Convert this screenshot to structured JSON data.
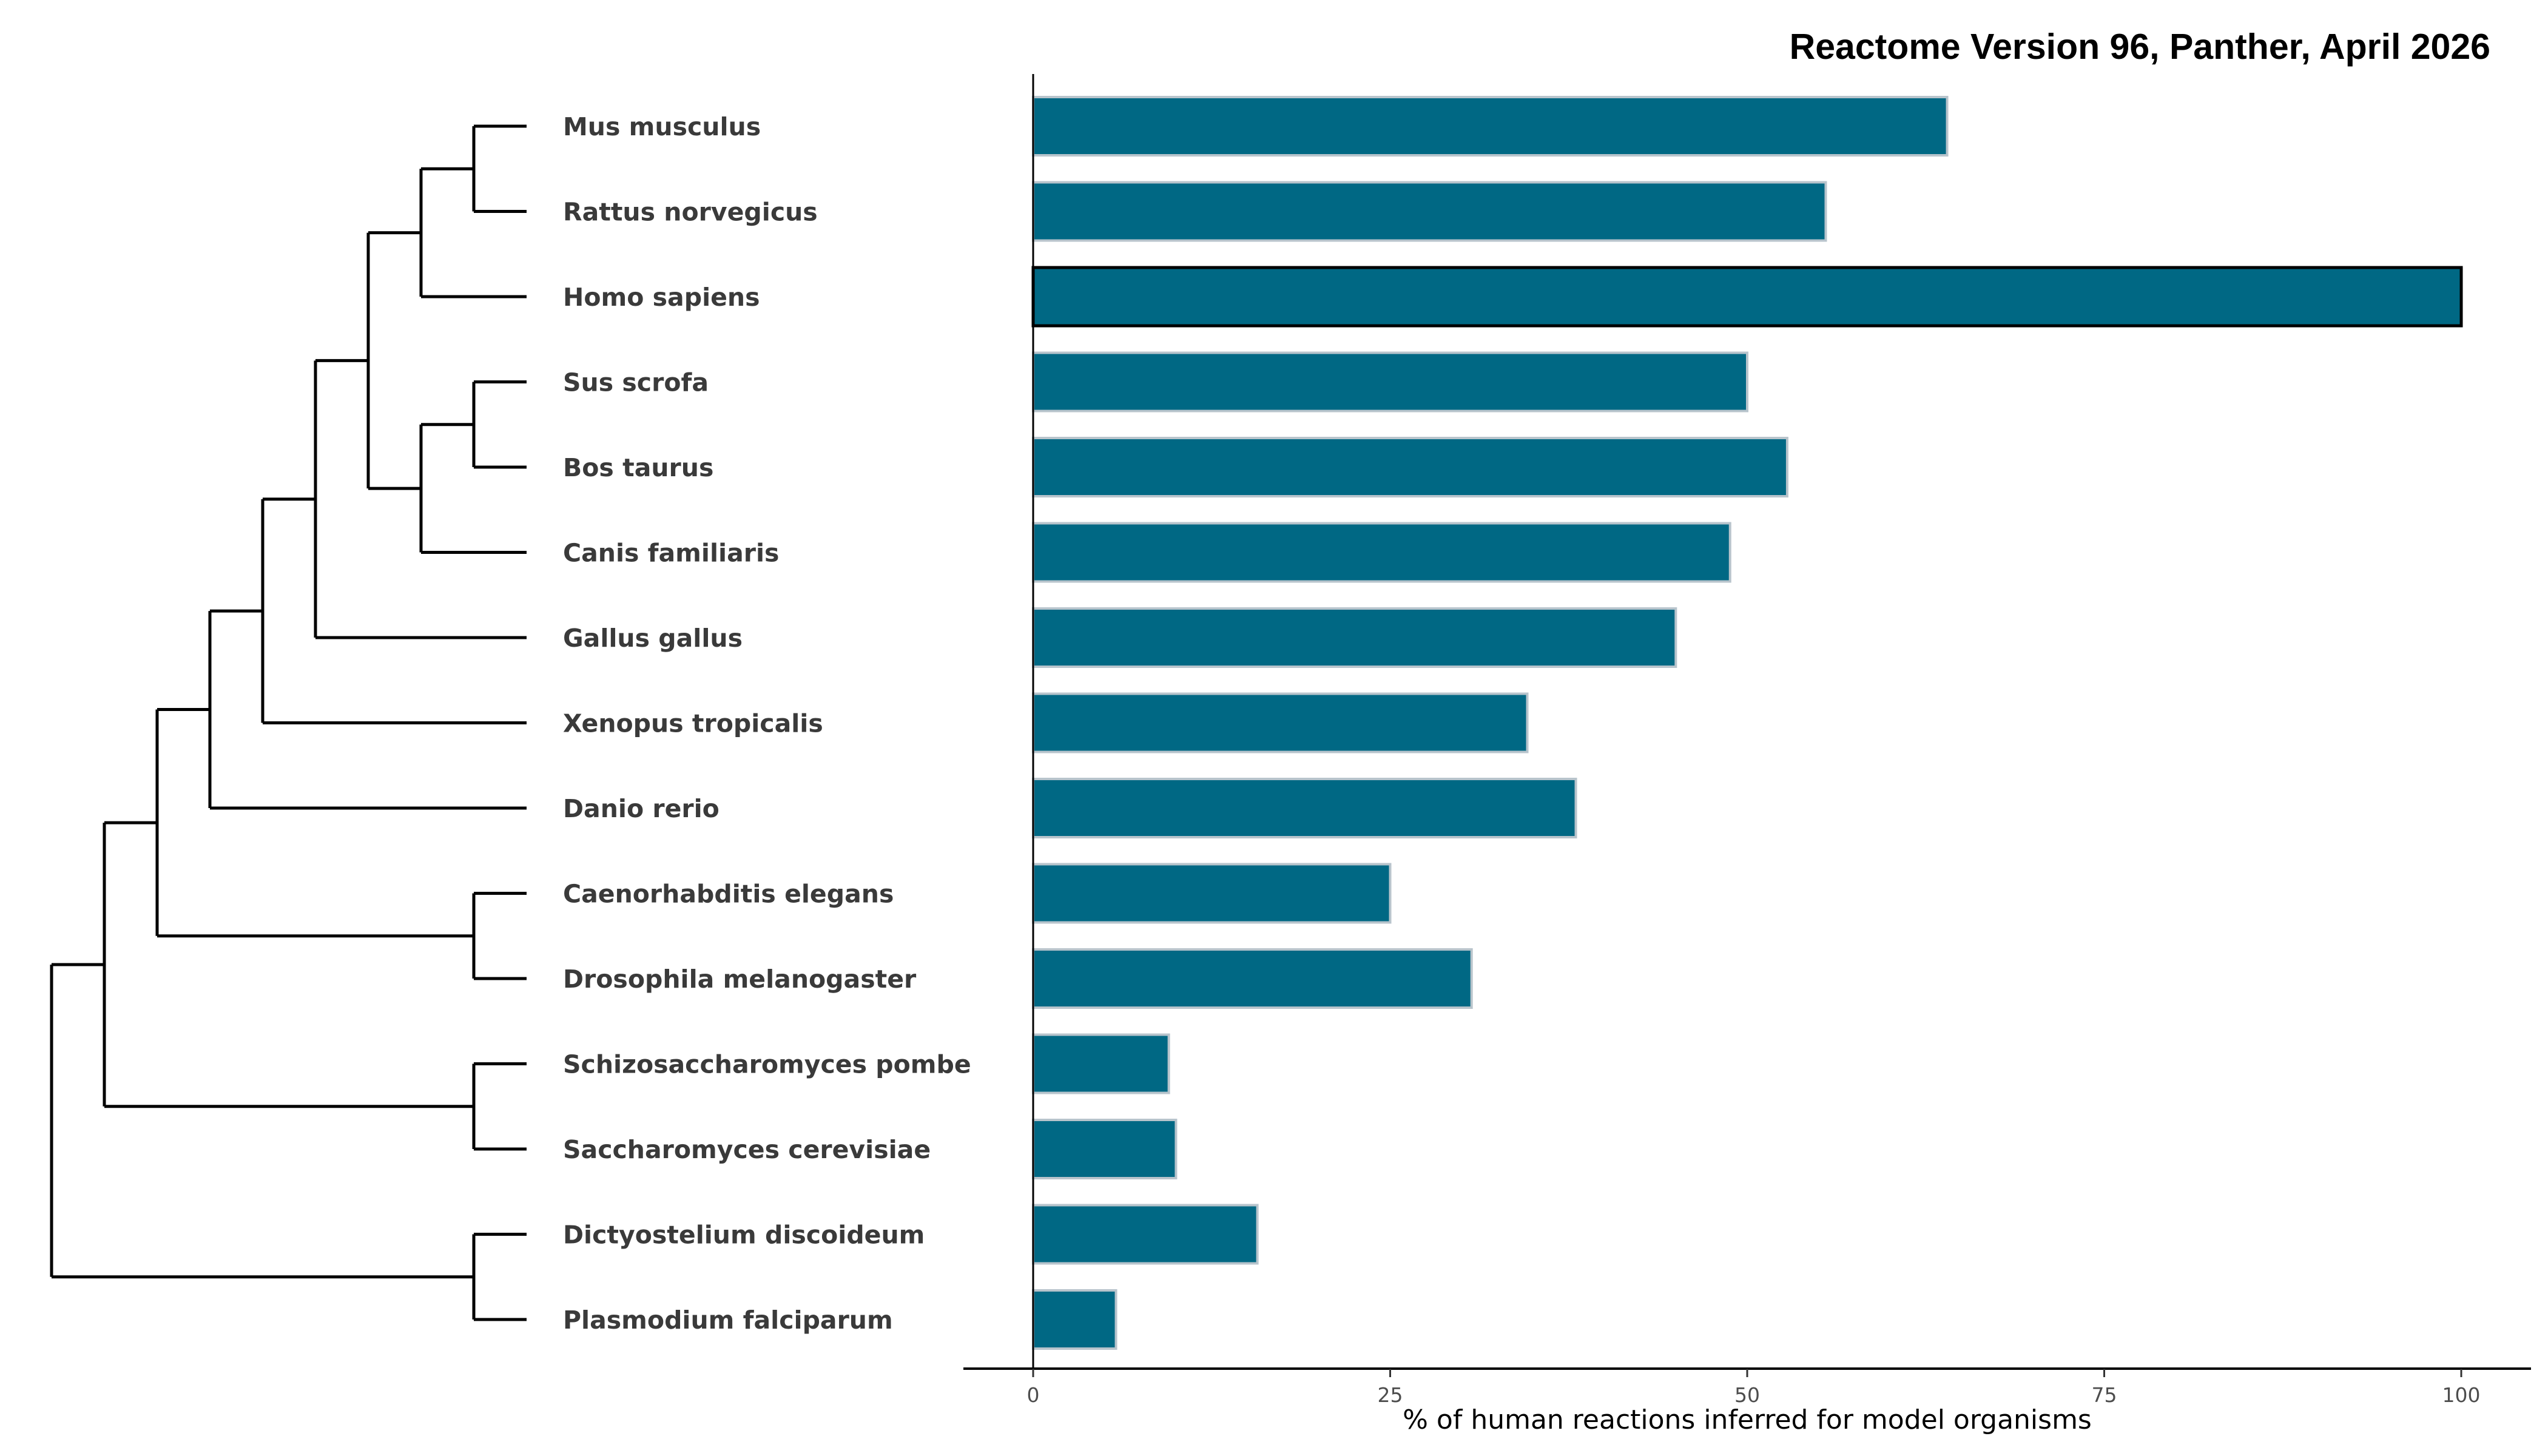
{
  "chart_data": {
    "type": "bar",
    "orientation": "horizontal",
    "title": "Reactome Version 96, Panther, April 2026",
    "xlabel": "% of human reactions inferred for model organisms",
    "ylabel": "",
    "xlim": [
      0,
      100
    ],
    "xticks": [
      0,
      25,
      50,
      75,
      100
    ],
    "grid": false,
    "colors": {
      "bar": "#006884",
      "bar_outline": "#b8c4cc",
      "highlight_outline": "#000000"
    },
    "categories": [
      "Mus musculus",
      "Rattus norvegicus",
      "Homo sapiens",
      "Sus scrofa",
      "Bos taurus",
      "Canis familiaris",
      "Gallus gallus",
      "Xenopus tropicalis",
      "Danio rerio",
      "Caenorhabditis elegans",
      "Drosophila melanogaster",
      "Schizosaccharomyces pombe",
      "Saccharomyces cerevisiae",
      "Dictyostelium discoideum",
      "Plasmodium falciparum"
    ],
    "values": [
      64.0,
      55.5,
      100.0,
      50.0,
      52.8,
      48.8,
      45.0,
      34.6,
      38.0,
      25.0,
      30.7,
      9.5,
      10.0,
      15.7,
      5.8
    ],
    "highlight": "Homo sapiens",
    "dendrogram": {
      "name": "root",
      "children": [
        {
          "name": "n1",
          "children": [
            {
              "name": "n2",
              "children": [
                {
                  "name": "n3",
                  "children": [
                    {
                      "name": "n4",
                      "children": [
                        {
                          "name": "n5",
                          "children": [
                            {
                              "name": "n6",
                              "children": [
                                {
                                  "name": "n7",
                                  "children": [
                                    {
                                      "name": "n8",
                                      "children": [
                                        {
                                          "name": "Mus musculus"
                                        },
                                        {
                                          "name": "Rattus norvegicus"
                                        }
                                      ]
                                    },
                                    {
                                      "name": "Homo sapiens"
                                    }
                                  ]
                                },
                                {
                                  "name": "n9",
                                  "children": [
                                    {
                                      "name": "n10",
                                      "children": [
                                        {
                                          "name": "Sus scrofa"
                                        },
                                        {
                                          "name": "Bos taurus"
                                        }
                                      ]
                                    },
                                    {
                                      "name": "Canis familiaris"
                                    }
                                  ]
                                }
                              ]
                            },
                            {
                              "name": "Gallus gallus"
                            }
                          ]
                        },
                        {
                          "name": "Xenopus tropicalis"
                        }
                      ]
                    },
                    {
                      "name": "Danio rerio"
                    }
                  ]
                },
                {
                  "name": "n11",
                  "children": [
                    {
                      "name": "Caenorhabditis elegans"
                    },
                    {
                      "name": "Drosophila melanogaster"
                    }
                  ]
                }
              ]
            },
            {
              "name": "n12",
              "children": [
                {
                  "name": "Schizosaccharomyces pombe"
                },
                {
                  "name": "Saccharomyces cerevisiae"
                }
              ]
            }
          ]
        },
        {
          "name": "n13",
          "children": [
            {
              "name": "Dictyostelium discoideum"
            },
            {
              "name": "Plasmodium falciparum"
            }
          ]
        }
      ]
    }
  }
}
